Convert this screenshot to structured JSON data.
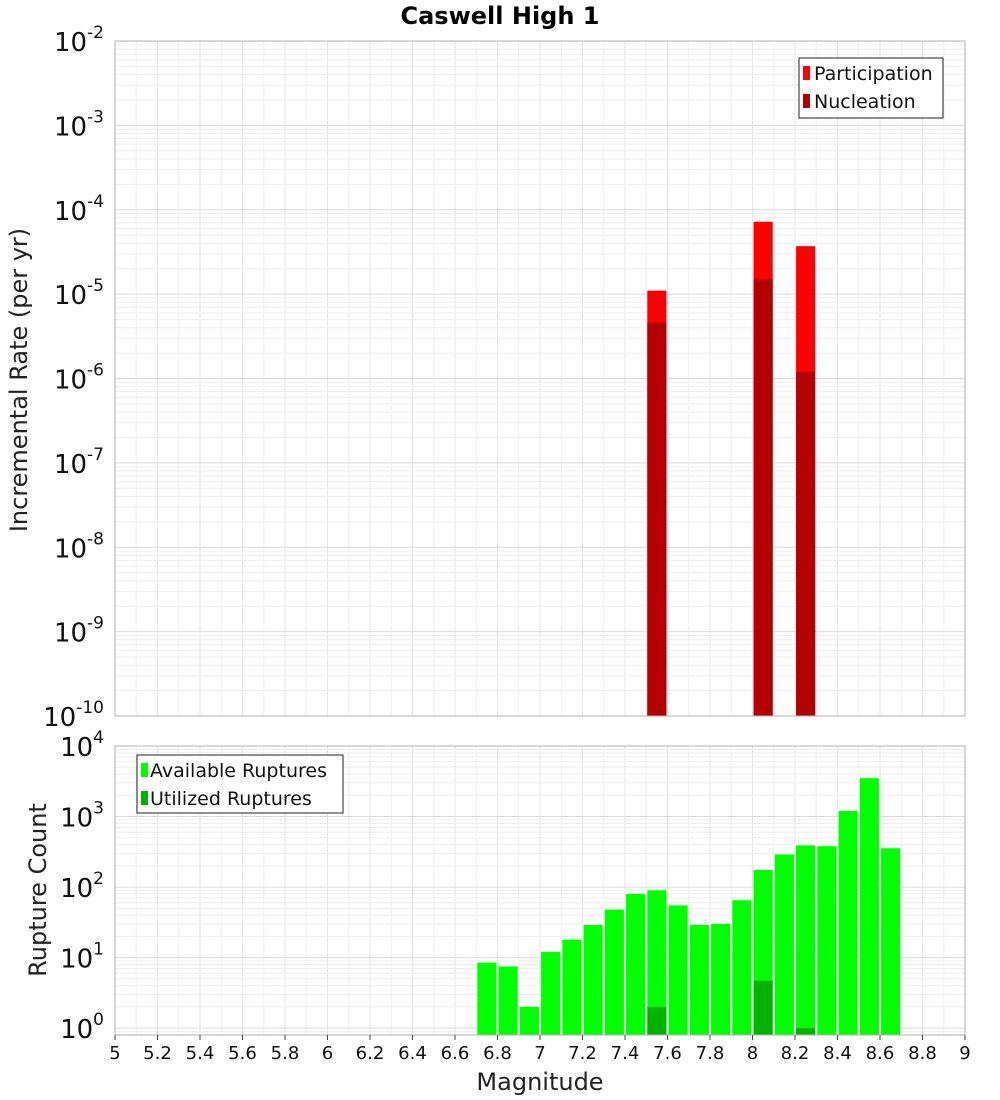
{
  "chart_data": [
    {
      "type": "bar",
      "title": "Caswell High 1",
      "xlabel": "",
      "ylabel": "Incremental Rate (per yr)",
      "xlim": [
        5,
        9
      ],
      "ylim": [
        1e-10,
        0.01
      ],
      "yscale": "log",
      "y_tick_exponents": [
        -10,
        -9,
        -8,
        -7,
        -6,
        -5,
        -4,
        -3,
        -2
      ],
      "grid": true,
      "legend_position": "top-right",
      "bar_width": 0.09,
      "series": [
        {
          "name": "Participation",
          "color": "#ff0000",
          "x": [
            7.55,
            8.05,
            8.25
          ],
          "values": [
            1.1e-05,
            7.2e-05,
            3.7e-05
          ]
        },
        {
          "name": "Nucleation",
          "color": "#b30000",
          "x": [
            7.55,
            8.05,
            8.25
          ],
          "values": [
            4.6e-06,
            1.5e-05,
            1.2e-06
          ]
        }
      ]
    },
    {
      "type": "bar",
      "title": "",
      "xlabel": "Magnitude",
      "ylabel": "Rupture Count",
      "xlim": [
        5,
        9
      ],
      "ylim": [
        0.8,
        10000
      ],
      "yscale": "log",
      "y_tick_exponents": [
        0,
        1,
        2,
        3,
        4
      ],
      "x_ticks": [
        "5",
        "5.2",
        "5.4",
        "5.6",
        "5.8",
        "6",
        "6.2",
        "6.4",
        "6.6",
        "6.8",
        "7",
        "7.2",
        "7.4",
        "7.6",
        "7.8",
        "8",
        "8.2",
        "8.4",
        "8.6",
        "8.8",
        "9"
      ],
      "grid": true,
      "legend_position": "top-left",
      "bar_width": 0.09,
      "series": [
        {
          "name": "Available Ruptures",
          "color": "#00ff00",
          "x": [
            6.75,
            6.85,
            6.95,
            7.05,
            7.15,
            7.25,
            7.35,
            7.45,
            7.55,
            7.65,
            7.75,
            7.85,
            7.95,
            8.05,
            8.15,
            8.25,
            8.35,
            8.45,
            8.55,
            8.65
          ],
          "values": [
            8.5,
            7.5,
            2,
            12,
            18,
            29,
            48,
            80,
            90,
            55,
            29,
            30,
            65,
            175,
            290,
            390,
            380,
            1200,
            3500,
            355
          ]
        },
        {
          "name": "Utilized Ruptures",
          "color": "#00b300",
          "x": [
            7.55,
            8.05,
            8.25
          ],
          "values": [
            2,
            4.7,
            1
          ]
        }
      ]
    }
  ]
}
